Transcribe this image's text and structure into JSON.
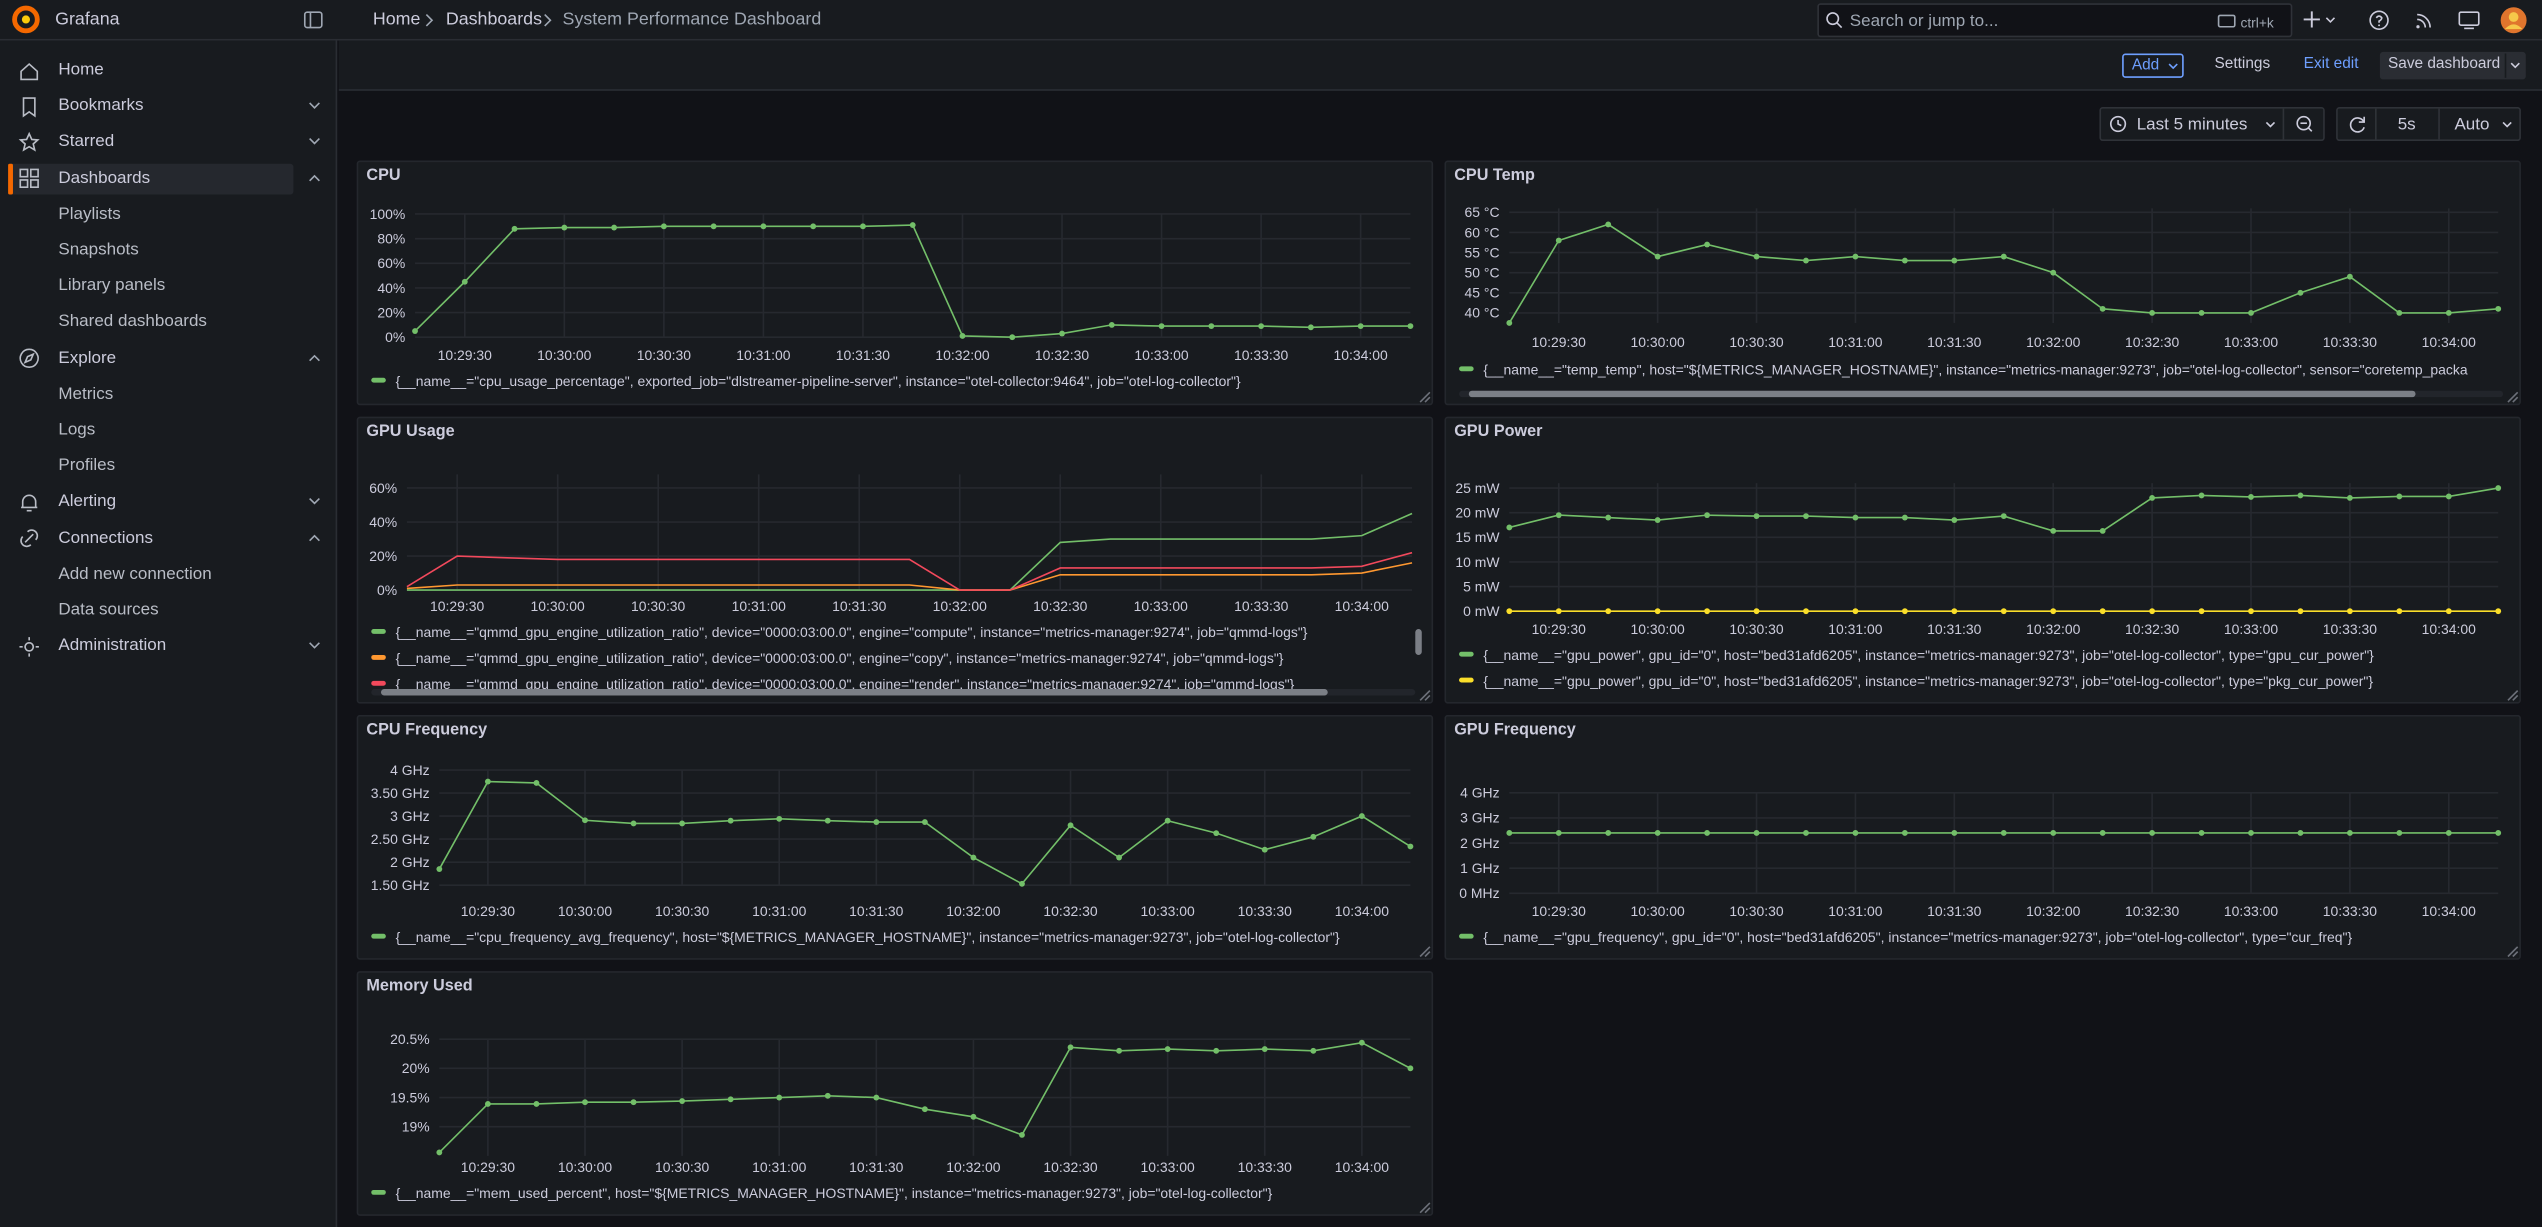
{
  "nav": {
    "brand": "Grafana",
    "items": [
      {
        "label": "Home"
      },
      {
        "label": "Bookmarks",
        "collapsed": true
      },
      {
        "label": "Starred",
        "collapsed": true
      },
      {
        "label": "Dashboards",
        "active": true,
        "children": [
          "Playlists",
          "Snapshots",
          "Library panels",
          "Shared dashboards"
        ]
      },
      {
        "label": "Explore",
        "children": [
          "Metrics",
          "Logs",
          "Profiles"
        ]
      },
      {
        "label": "Alerting",
        "collapsed": true
      },
      {
        "label": "Connections",
        "children": [
          "Add new connection",
          "Data sources"
        ]
      },
      {
        "label": "Administration",
        "collapsed": true
      }
    ]
  },
  "breadcrumb": [
    "Home",
    "Dashboards",
    "System Performance Dashboard"
  ],
  "search": {
    "placeholder": "Search or jump to...",
    "shortcut": "ctrl+k"
  },
  "toolbar": {
    "add": "Add",
    "settings": "Settings",
    "exit": "Exit edit",
    "save": "Save dashboard"
  },
  "time": {
    "range": "Last 5 minutes",
    "refresh": "5s",
    "mode": "Auto"
  },
  "chart_data": [
    {
      "type": "line",
      "title": "CPU",
      "points": true,
      "grid": true,
      "x": [
        "10:29:15",
        "10:29:30",
        "10:29:45",
        "10:30:00",
        "10:30:15",
        "10:30:30",
        "10:30:45",
        "10:31:00",
        "10:31:15",
        "10:31:30",
        "10:31:45",
        "10:32:00",
        "10:32:15",
        "10:32:30",
        "10:32:45",
        "10:33:00",
        "10:33:15",
        "10:33:30",
        "10:33:45",
        "10:34:00",
        "10:34:15"
      ],
      "xlim": [
        "10:29:15",
        "10:34:15"
      ],
      "xticks": [
        "10:29:30",
        "10:30:00",
        "10:30:30",
        "10:31:00",
        "10:31:30",
        "10:32:00",
        "10:32:30",
        "10:33:00",
        "10:33:30",
        "10:34:00"
      ],
      "ylim": [
        0,
        100
      ],
      "yticks": [
        {
          "value": 0,
          "label": "0%"
        },
        {
          "value": 20,
          "label": "20%"
        },
        {
          "value": 40,
          "label": "40%"
        },
        {
          "value": 60,
          "label": "60%"
        },
        {
          "value": 80,
          "label": "80%"
        },
        {
          "value": 100,
          "label": "100%"
        }
      ],
      "series": [
        {
          "name": "{__name__=\"cpu_usage_percentage\", exported_job=\"dlstreamer-pipeline-server\", instance=\"otel-collector:9464\", job=\"otel-log-collector\"}",
          "color": "#73bf69",
          "values": [
            5,
            45,
            88,
            89,
            89,
            90,
            90,
            90,
            90,
            90,
            91,
            1,
            0,
            3,
            10,
            9,
            9,
            9,
            8,
            9,
            9
          ]
        }
      ]
    },
    {
      "type": "line",
      "title": "CPU Temp",
      "points": true,
      "grid": true,
      "x": [
        "10:29:15",
        "10:29:30",
        "10:29:45",
        "10:30:00",
        "10:30:15",
        "10:30:30",
        "10:30:45",
        "10:31:00",
        "10:31:15",
        "10:31:30",
        "10:31:45",
        "10:32:00",
        "10:32:15",
        "10:32:30",
        "10:32:45",
        "10:33:00",
        "10:33:15",
        "10:33:30",
        "10:33:45",
        "10:34:00",
        "10:34:15"
      ],
      "xlim": [
        "10:29:15",
        "10:34:15"
      ],
      "xticks": [
        "10:29:30",
        "10:30:00",
        "10:30:30",
        "10:31:00",
        "10:31:30",
        "10:32:00",
        "10:32:30",
        "10:33:00",
        "10:33:30",
        "10:34:00"
      ],
      "ylim": [
        37.5,
        66
      ],
      "yticks": [
        {
          "value": 40,
          "label": "40 °C"
        },
        {
          "value": 45,
          "label": "45 °C"
        },
        {
          "value": 50,
          "label": "50 °C"
        },
        {
          "value": 55,
          "label": "55 °C"
        },
        {
          "value": 60,
          "label": "60 °C"
        },
        {
          "value": 65,
          "label": "65 °C"
        }
      ],
      "series": [
        {
          "name": "{__name__=\"temp_temp\", host=\"${METRICS_MANAGER_HOSTNAME}\", instance=\"metrics-manager:9273\", job=\"otel-log-collector\", sensor=\"coretemp_packa",
          "color": "#73bf69",
          "values": [
            37.5,
            58,
            62,
            54,
            57,
            54,
            53,
            54,
            53,
            53,
            54,
            50,
            41,
            40,
            40,
            40,
            45,
            49,
            40,
            40,
            41
          ]
        }
      ]
    },
    {
      "type": "line",
      "title": "GPU Usage",
      "points": false,
      "grid": true,
      "x": [
        "10:29:15",
        "10:29:30",
        "10:29:45",
        "10:30:00",
        "10:30:15",
        "10:30:30",
        "10:30:45",
        "10:31:00",
        "10:31:15",
        "10:31:30",
        "10:31:45",
        "10:32:00",
        "10:32:15",
        "10:32:30",
        "10:32:45",
        "10:33:00",
        "10:33:15",
        "10:33:30",
        "10:33:45",
        "10:34:00",
        "10:34:15"
      ],
      "xlim": [
        "10:29:15",
        "10:34:15"
      ],
      "xticks": [
        "10:29:30",
        "10:30:00",
        "10:30:30",
        "10:31:00",
        "10:31:30",
        "10:32:00",
        "10:32:30",
        "10:33:00",
        "10:33:30",
        "10:34:00"
      ],
      "ylim": [
        0,
        68
      ],
      "yticks": [
        {
          "value": 0,
          "label": "0%"
        },
        {
          "value": 20,
          "label": "20%"
        },
        {
          "value": 40,
          "label": "40%"
        },
        {
          "value": 60,
          "label": "60%"
        }
      ],
      "series": [
        {
          "name": "{__name__=\"qmmd_gpu_engine_utilization_ratio\", device=\"0000:03:00.0\", engine=\"compute\", instance=\"metrics-manager:9274\", job=\"qmmd-logs\"}",
          "color": "#73bf69",
          "values": [
            0,
            0,
            0,
            0,
            0,
            0,
            0,
            0,
            0,
            0,
            0,
            0,
            0,
            28,
            30,
            30,
            30,
            30,
            30,
            32,
            45
          ]
        },
        {
          "name": "{__name__=\"qmmd_gpu_engine_utilization_ratio\", device=\"0000:03:00.0\", engine=\"copy\", instance=\"metrics-manager:9274\", job=\"qmmd-logs\"}",
          "color": "#ff9830",
          "values": [
            1,
            3,
            3,
            3,
            3,
            3,
            3,
            3,
            3,
            3,
            3,
            0,
            0,
            9,
            9,
            9,
            9,
            9,
            9,
            10,
            16
          ]
        },
        {
          "name": "{__name__=\"qmmd_gpu_engine_utilization_ratio\", device=\"0000:03:00.0\", engine=\"render\", instance=\"metrics-manager:9274\", job=\"qmmd-logs\"}",
          "color": "#f2495c",
          "values": [
            2,
            20,
            19,
            18,
            18,
            18,
            18,
            18,
            18,
            18,
            18,
            0,
            0,
            13,
            13,
            13,
            13,
            13,
            13,
            14,
            22
          ]
        }
      ]
    },
    {
      "type": "line",
      "title": "GPU Power",
      "points": true,
      "grid": true,
      "x": [
        "10:29:15",
        "10:29:30",
        "10:29:45",
        "10:30:00",
        "10:30:15",
        "10:30:30",
        "10:30:45",
        "10:31:00",
        "10:31:15",
        "10:31:30",
        "10:31:45",
        "10:32:00",
        "10:32:15",
        "10:32:30",
        "10:32:45",
        "10:33:00",
        "10:33:15",
        "10:33:30",
        "10:33:45",
        "10:34:00",
        "10:34:15"
      ],
      "xlim": [
        "10:29:15",
        "10:34:15"
      ],
      "xticks": [
        "10:29:30",
        "10:30:00",
        "10:30:30",
        "10:31:00",
        "10:31:30",
        "10:32:00",
        "10:32:30",
        "10:33:00",
        "10:33:30",
        "10:34:00"
      ],
      "ylim": [
        0,
        26
      ],
      "yticks": [
        {
          "value": 0,
          "label": "0 mW"
        },
        {
          "value": 5,
          "label": "5 mW"
        },
        {
          "value": 10,
          "label": "10 mW"
        },
        {
          "value": 15,
          "label": "15 mW"
        },
        {
          "value": 20,
          "label": "20 mW"
        },
        {
          "value": 25,
          "label": "25 mW"
        }
      ],
      "series": [
        {
          "name": "{__name__=\"gpu_power\", gpu_id=\"0\", host=\"bed31afd6205\", instance=\"metrics-manager:9273\", job=\"otel-log-collector\", type=\"gpu_cur_power\"}",
          "color": "#73bf69",
          "values": [
            17,
            19.5,
            19,
            18.5,
            19.5,
            19.3,
            19.3,
            19,
            19,
            18.5,
            19.3,
            16.3,
            16.3,
            23,
            23.5,
            23.2,
            23.5,
            23,
            23.3,
            23.3,
            25
          ]
        },
        {
          "name": "{__name__=\"gpu_power\", gpu_id=\"0\", host=\"bed31afd6205\", instance=\"metrics-manager:9273\", job=\"otel-log-collector\", type=\"pkg_cur_power\"}",
          "color": "#fade2a",
          "values": [
            0,
            0,
            0,
            0,
            0,
            0,
            0,
            0,
            0,
            0,
            0,
            0,
            0,
            0,
            0,
            0,
            0,
            0,
            0,
            0,
            0
          ]
        }
      ]
    },
    {
      "type": "line",
      "title": "CPU Frequency",
      "points": true,
      "grid": true,
      "x": [
        "10:29:15",
        "10:29:30",
        "10:29:45",
        "10:30:00",
        "10:30:15",
        "10:30:30",
        "10:30:45",
        "10:31:00",
        "10:31:15",
        "10:31:30",
        "10:31:45",
        "10:32:00",
        "10:32:15",
        "10:32:30",
        "10:32:45",
        "10:33:00",
        "10:33:15",
        "10:33:30",
        "10:33:45",
        "10:34:00",
        "10:34:15"
      ],
      "xlim": [
        "10:29:15",
        "10:34:15"
      ],
      "xticks": [
        "10:29:30",
        "10:30:00",
        "10:30:30",
        "10:31:00",
        "10:31:30",
        "10:32:00",
        "10:32:30",
        "10:33:00",
        "10:33:30",
        "10:34:00"
      ],
      "ylim": [
        1.5,
        4
      ],
      "yticks": [
        {
          "value": 1.5,
          "label": "1.50 GHz"
        },
        {
          "value": 2,
          "label": "2 GHz"
        },
        {
          "value": 2.5,
          "label": "2.50 GHz"
        },
        {
          "value": 3,
          "label": "3 GHz"
        },
        {
          "value": 3.5,
          "label": "3.50 GHz"
        },
        {
          "value": 4,
          "label": "4 GHz"
        }
      ],
      "series": [
        {
          "name": "{__name__=\"cpu_frequency_avg_frequency\", host=\"${METRICS_MANAGER_HOSTNAME}\", instance=\"metrics-manager:9273\", job=\"otel-log-collector\"}",
          "color": "#73bf69",
          "values": [
            1.85,
            3.75,
            3.72,
            2.91,
            2.84,
            2.84,
            2.9,
            2.94,
            2.9,
            2.87,
            2.87,
            2.1,
            1.53,
            2.8,
            2.1,
            2.9,
            2.63,
            2.27,
            2.55,
            3.0,
            2.34
          ]
        }
      ]
    },
    {
      "type": "line",
      "title": "GPU Frequency",
      "points": true,
      "grid": true,
      "x": [
        "10:29:15",
        "10:29:30",
        "10:29:45",
        "10:30:00",
        "10:30:15",
        "10:30:30",
        "10:30:45",
        "10:31:00",
        "10:31:15",
        "10:31:30",
        "10:31:45",
        "10:32:00",
        "10:32:15",
        "10:32:30",
        "10:32:45",
        "10:33:00",
        "10:33:15",
        "10:33:30",
        "10:33:45",
        "10:34:00",
        "10:34:15"
      ],
      "xlim": [
        "10:29:15",
        "10:34:15"
      ],
      "xticks": [
        "10:29:30",
        "10:30:00",
        "10:30:30",
        "10:31:00",
        "10:31:30",
        "10:32:00",
        "10:32:30",
        "10:33:00",
        "10:33:30",
        "10:34:00"
      ],
      "ylim": [
        0,
        4
      ],
      "yticks": [
        {
          "value": 0,
          "label": "0 MHz"
        },
        {
          "value": 1,
          "label": "1 GHz"
        },
        {
          "value": 2,
          "label": "2 GHz"
        },
        {
          "value": 3,
          "label": "3 GHz"
        },
        {
          "value": 4,
          "label": "4 GHz"
        }
      ],
      "series": [
        {
          "name": "{__name__=\"gpu_frequency\", gpu_id=\"0\", host=\"bed31afd6205\", instance=\"metrics-manager:9273\", job=\"otel-log-collector\", type=\"cur_freq\"}",
          "color": "#73bf69",
          "values": [
            2.4,
            2.4,
            2.4,
            2.4,
            2.4,
            2.4,
            2.4,
            2.4,
            2.4,
            2.4,
            2.4,
            2.4,
            2.4,
            2.4,
            2.4,
            2.4,
            2.4,
            2.4,
            2.4,
            2.4,
            2.4
          ]
        }
      ]
    },
    {
      "type": "line",
      "title": "Memory Used",
      "points": true,
      "grid": true,
      "x": [
        "10:29:15",
        "10:29:30",
        "10:29:45",
        "10:30:00",
        "10:30:15",
        "10:30:30",
        "10:30:45",
        "10:31:00",
        "10:31:15",
        "10:31:30",
        "10:31:45",
        "10:32:00",
        "10:32:15",
        "10:32:30",
        "10:32:45",
        "10:33:00",
        "10:33:15",
        "10:33:30",
        "10:33:45",
        "10:34:00",
        "10:34:15"
      ],
      "xlim": [
        "10:29:15",
        "10:34:15"
      ],
      "xticks": [
        "10:29:30",
        "10:30:00",
        "10:30:30",
        "10:31:00",
        "10:31:30",
        "10:32:00",
        "10:32:30",
        "10:33:00",
        "10:33:30",
        "10:34:00"
      ],
      "ylim": [
        18.5,
        20.5
      ],
      "yticks": [
        {
          "value": 19,
          "label": "19%"
        },
        {
          "value": 19.5,
          "label": "19.5%"
        },
        {
          "value": 20,
          "label": "20%"
        },
        {
          "value": 20.5,
          "label": "20.5%"
        }
      ],
      "series": [
        {
          "name": "{__name__=\"mem_used_percent\", host=\"${METRICS_MANAGER_HOSTNAME}\", instance=\"metrics-manager:9273\", job=\"otel-log-collector\"}",
          "color": "#73bf69",
          "values": [
            18.56,
            19.39,
            19.39,
            19.42,
            19.42,
            19.44,
            19.47,
            19.5,
            19.53,
            19.5,
            19.3,
            19.17,
            18.86,
            20.36,
            20.3,
            20.33,
            20.3,
            20.33,
            20.3,
            20.44,
            20.0
          ]
        }
      ]
    }
  ]
}
